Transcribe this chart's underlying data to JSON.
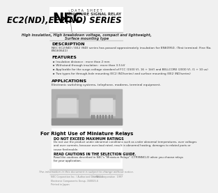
{
  "bg_color": "#e8e8e8",
  "page_bg": "#f0f0f0",
  "white": "#ffffff",
  "black": "#000000",
  "dark_gray": "#333333",
  "med_gray": "#888888",
  "light_gray": "#cccccc",
  "header_text": "D A T A   S H E E T",
  "logo": "NEC",
  "series_label": "MINIATURE SIGNAL RELAY",
  "series_title": "EC2(ND),EE2(ND) SERIES",
  "subtitle1": "High insulation, High breakdown voltage, compact and lightweight,",
  "subtitle2": "Surface mounting type",
  "desc_title": "DESCRIPTION",
  "desc_body": "NEC EC2(ND) / EE2 (ND) series has passed approximately insulation for EN60950. (Test terminal: Fine No.\nEN160641)",
  "feat_title": "FEATURES",
  "feat1": "Insulation distance : more than 2 mm",
  "feat2": "Withstand through insulation : more than 3.5 kV",
  "feat3": "Applicable for the surge-voltage standard of FCC (1500 V), 16 + 1kV) and BELLCORE (2000 V), (1 + 10 us)",
  "feat4": "Two types for through-hole mounting (EC2 (ND)series) and surface mounting (EE2 (ND)series)",
  "app_title": "APPLICATIONS",
  "app_body": "Electronic switching systems, telephone, modems, terminal equipment.",
  "warn_title": "For Right Use of Miniature Relays",
  "warn1_title": "DO NOT EXCEED MAXIMUM RATINGS",
  "warn1_body": "Do not use the product under abnormal conditions such as under abnormal temperatures, over voltages\nand over currents, because over-load rated, result in abnormal heating, damages to related parts or\ncause fire/trouble.",
  "warn2_title": "READ CAUTIONS IN THE SELECTION GUIDE.",
  "warn2_body": "Read the cautious described in NEC's \"Miniature Relays\" (CTR9NNCL3) when you choose relays\nfor your application.",
  "footer1": "The information in this document is subject to change without notice.",
  "footer2": "NEC Corporation Inc. / Authorized Distributor\nElectronic Components Group, 150825-6\nPrinted in Japan",
  "footer3": "© NEC Corporation  1997"
}
